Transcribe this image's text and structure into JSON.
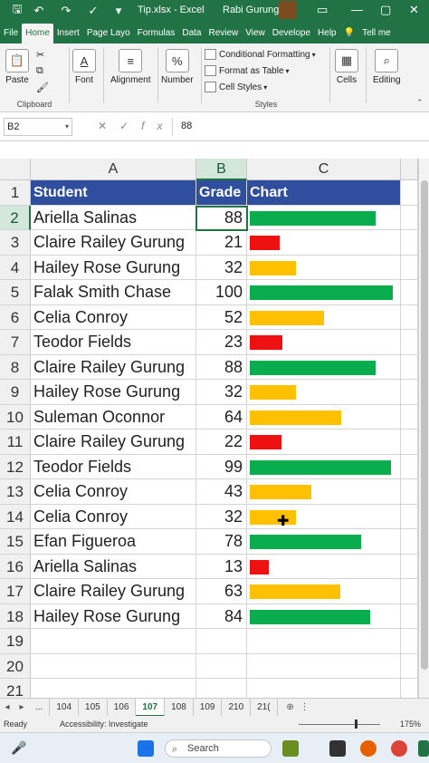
{
  "titlebar": {
    "filename": "Tip.xlsx",
    "sep": "-",
    "app": "Excel",
    "user": "Rabi Gurung",
    "autosave_icon": "save-icon",
    "undo_icon": "undo-icon",
    "redo_icon": "redo-icon"
  },
  "tabs": [
    "File",
    "Home",
    "Insert",
    "Page Layo",
    "Formulas",
    "Data",
    "Review",
    "View",
    "Develope",
    "Help",
    "Tell me"
  ],
  "ribbon": {
    "paste": "Paste",
    "clipboard": "Clipboard",
    "font": "Font",
    "alignment": "Alignment",
    "number": "Number",
    "conditional_formatting": "Conditional Formatting",
    "format_as_table": "Format as Table",
    "cell_styles": "Cell Styles",
    "styles": "Styles",
    "cells": "Cells",
    "editing": "Editing"
  },
  "formula_bar": {
    "name_box": "B2",
    "value": "88"
  },
  "columns": [
    "A",
    "B",
    "C"
  ],
  "header": {
    "a": "Student",
    "b": "Grade",
    "c": "Chart"
  },
  "rows": [
    {
      "name": "Ariella Salinas",
      "grade": 88
    },
    {
      "name": "Claire Railey Gurung",
      "grade": 21
    },
    {
      "name": "Hailey Rose Gurung",
      "grade": 32
    },
    {
      "name": "Falak Smith Chase",
      "grade": 100
    },
    {
      "name": "Celia Conroy",
      "grade": 52
    },
    {
      "name": "Teodor Fields",
      "grade": 23
    },
    {
      "name": "Claire Railey Gurung",
      "grade": 88
    },
    {
      "name": "Hailey Rose Gurung",
      "grade": 32
    },
    {
      "name": "Suleman Oconnor",
      "grade": 64
    },
    {
      "name": "Claire Railey Gurung",
      "grade": 22
    },
    {
      "name": "Teodor Fields",
      "grade": 99
    },
    {
      "name": "Celia Conroy",
      "grade": 43
    },
    {
      "name": "Celia Conroy",
      "grade": 32
    },
    {
      "name": "Efan Figueroa",
      "grade": 78
    },
    {
      "name": "Ariella Salinas",
      "grade": 13
    },
    {
      "name": "Claire Railey Gurung",
      "grade": 63
    },
    {
      "name": "Hailey Rose Gurung",
      "grade": 84
    }
  ],
  "row_numbers": [
    "1",
    "2",
    "3",
    "4",
    "5",
    "6",
    "7",
    "8",
    "9",
    "10",
    "11",
    "12",
    "13",
    "14",
    "15",
    "16",
    "17",
    "18",
    "19",
    "20",
    "21"
  ],
  "bar_colors": {
    "high": "#0aad4d",
    "mid": "#ffc000",
    "low": "#ee1111"
  },
  "sheet_tabs": [
    "...",
    "104",
    "105",
    "106",
    "107",
    "108",
    "109",
    "210",
    "21("
  ],
  "active_sheet": "107",
  "status": {
    "ready": "Ready",
    "accessibility": "Accessibility: Investigate",
    "zoom": "175%"
  },
  "taskbar": {
    "search": "Search"
  }
}
